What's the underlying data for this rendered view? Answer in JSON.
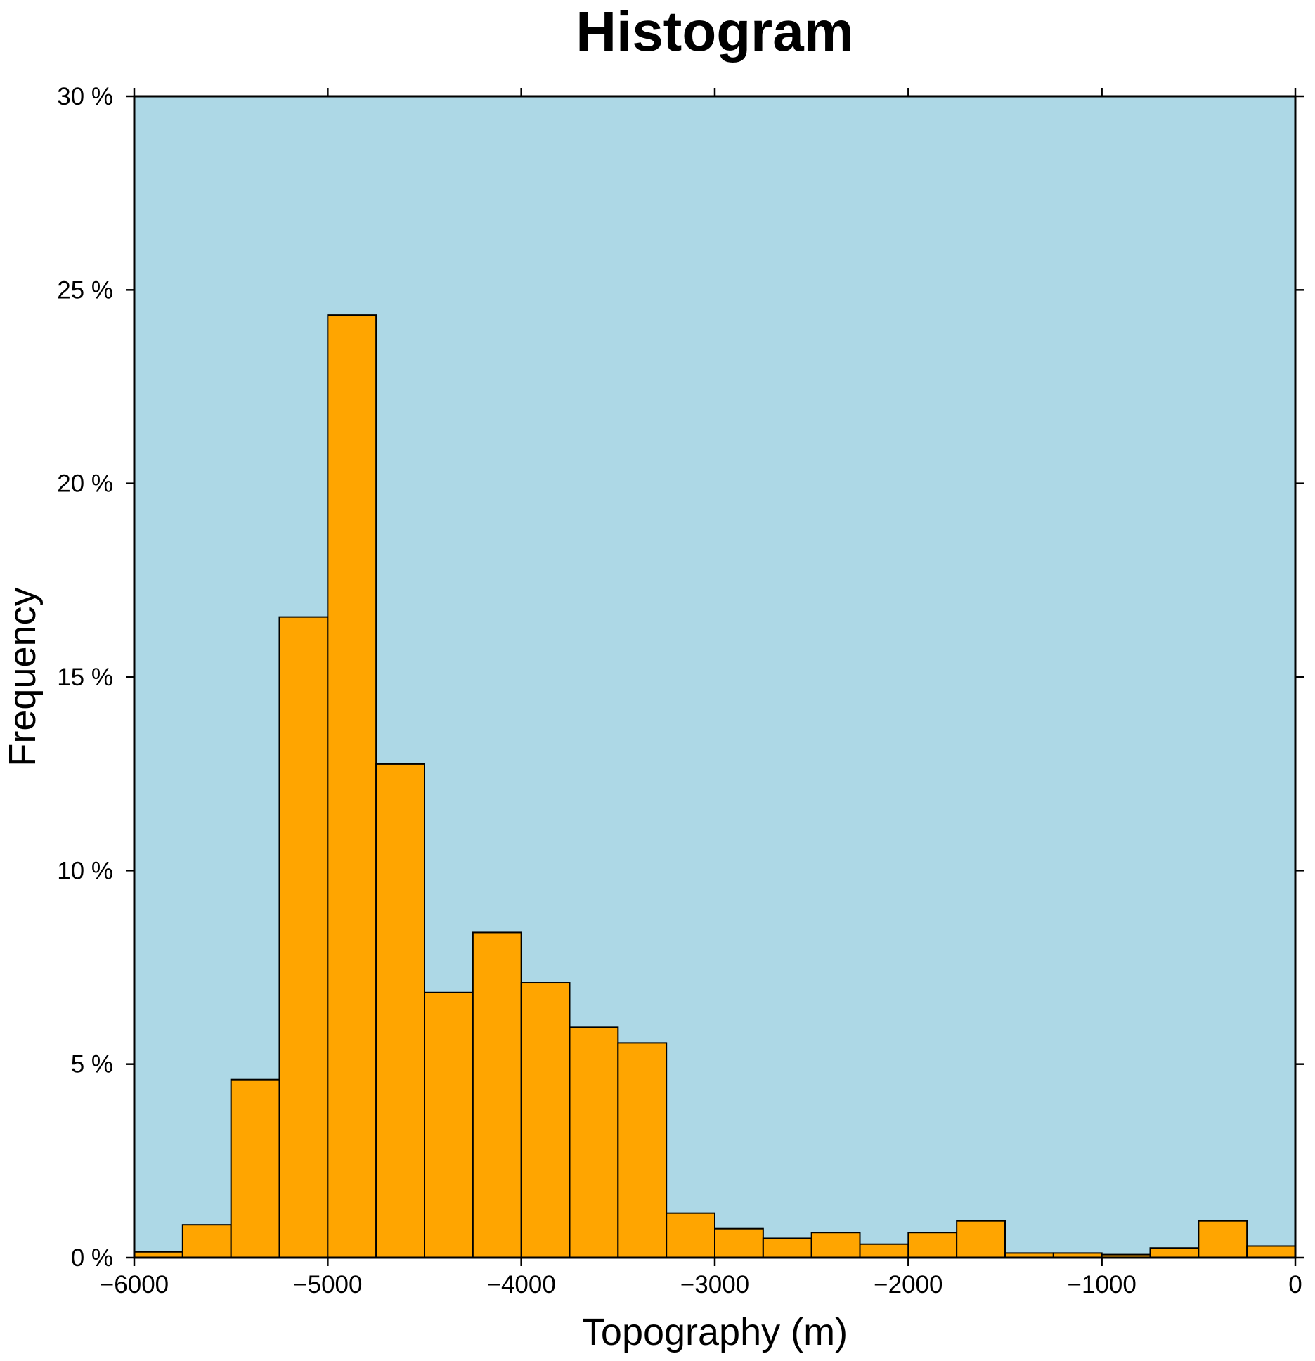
{
  "chart_data": {
    "type": "bar",
    "title": "Histogram",
    "xlabel": "Topography (m)",
    "ylabel": "Frequency",
    "xlim": [
      -6000,
      0
    ],
    "ylim": [
      0,
      30
    ],
    "bin_width": 250,
    "x_ticks": [
      -6000,
      -5000,
      -4000,
      -3000,
      -2000,
      -1000,
      0
    ],
    "x_tick_labels": [
      "−6000",
      "−5000",
      "−4000",
      "−3000",
      "−2000",
      "−1000",
      "0"
    ],
    "y_ticks": [
      0,
      5,
      10,
      15,
      20,
      25,
      30
    ],
    "y_tick_labels": [
      "0 %",
      "5 %",
      "10 %",
      "15 %",
      "20 %",
      "25 %",
      "30 %"
    ],
    "bin_starts": [
      -6000,
      -5750,
      -5500,
      -5250,
      -5000,
      -4750,
      -4500,
      -4250,
      -4000,
      -3750,
      -3500,
      -3250,
      -3000,
      -2750,
      -2500,
      -2250,
      -2000,
      -1750,
      -1500,
      -1250,
      -1000,
      -750,
      -500,
      -250
    ],
    "values": [
      0.15,
      0.85,
      4.6,
      16.55,
      24.35,
      12.75,
      6.85,
      8.4,
      7.1,
      5.95,
      5.55,
      1.15,
      0.75,
      0.5,
      0.65,
      0.35,
      0.65,
      0.95,
      0.12,
      0.12,
      0.08,
      0.25,
      0.95,
      0.3
    ],
    "grid": false,
    "colors": {
      "plot_background": "#add8e6",
      "bar_fill": "#ffa500",
      "bar_stroke": "#000000"
    }
  }
}
